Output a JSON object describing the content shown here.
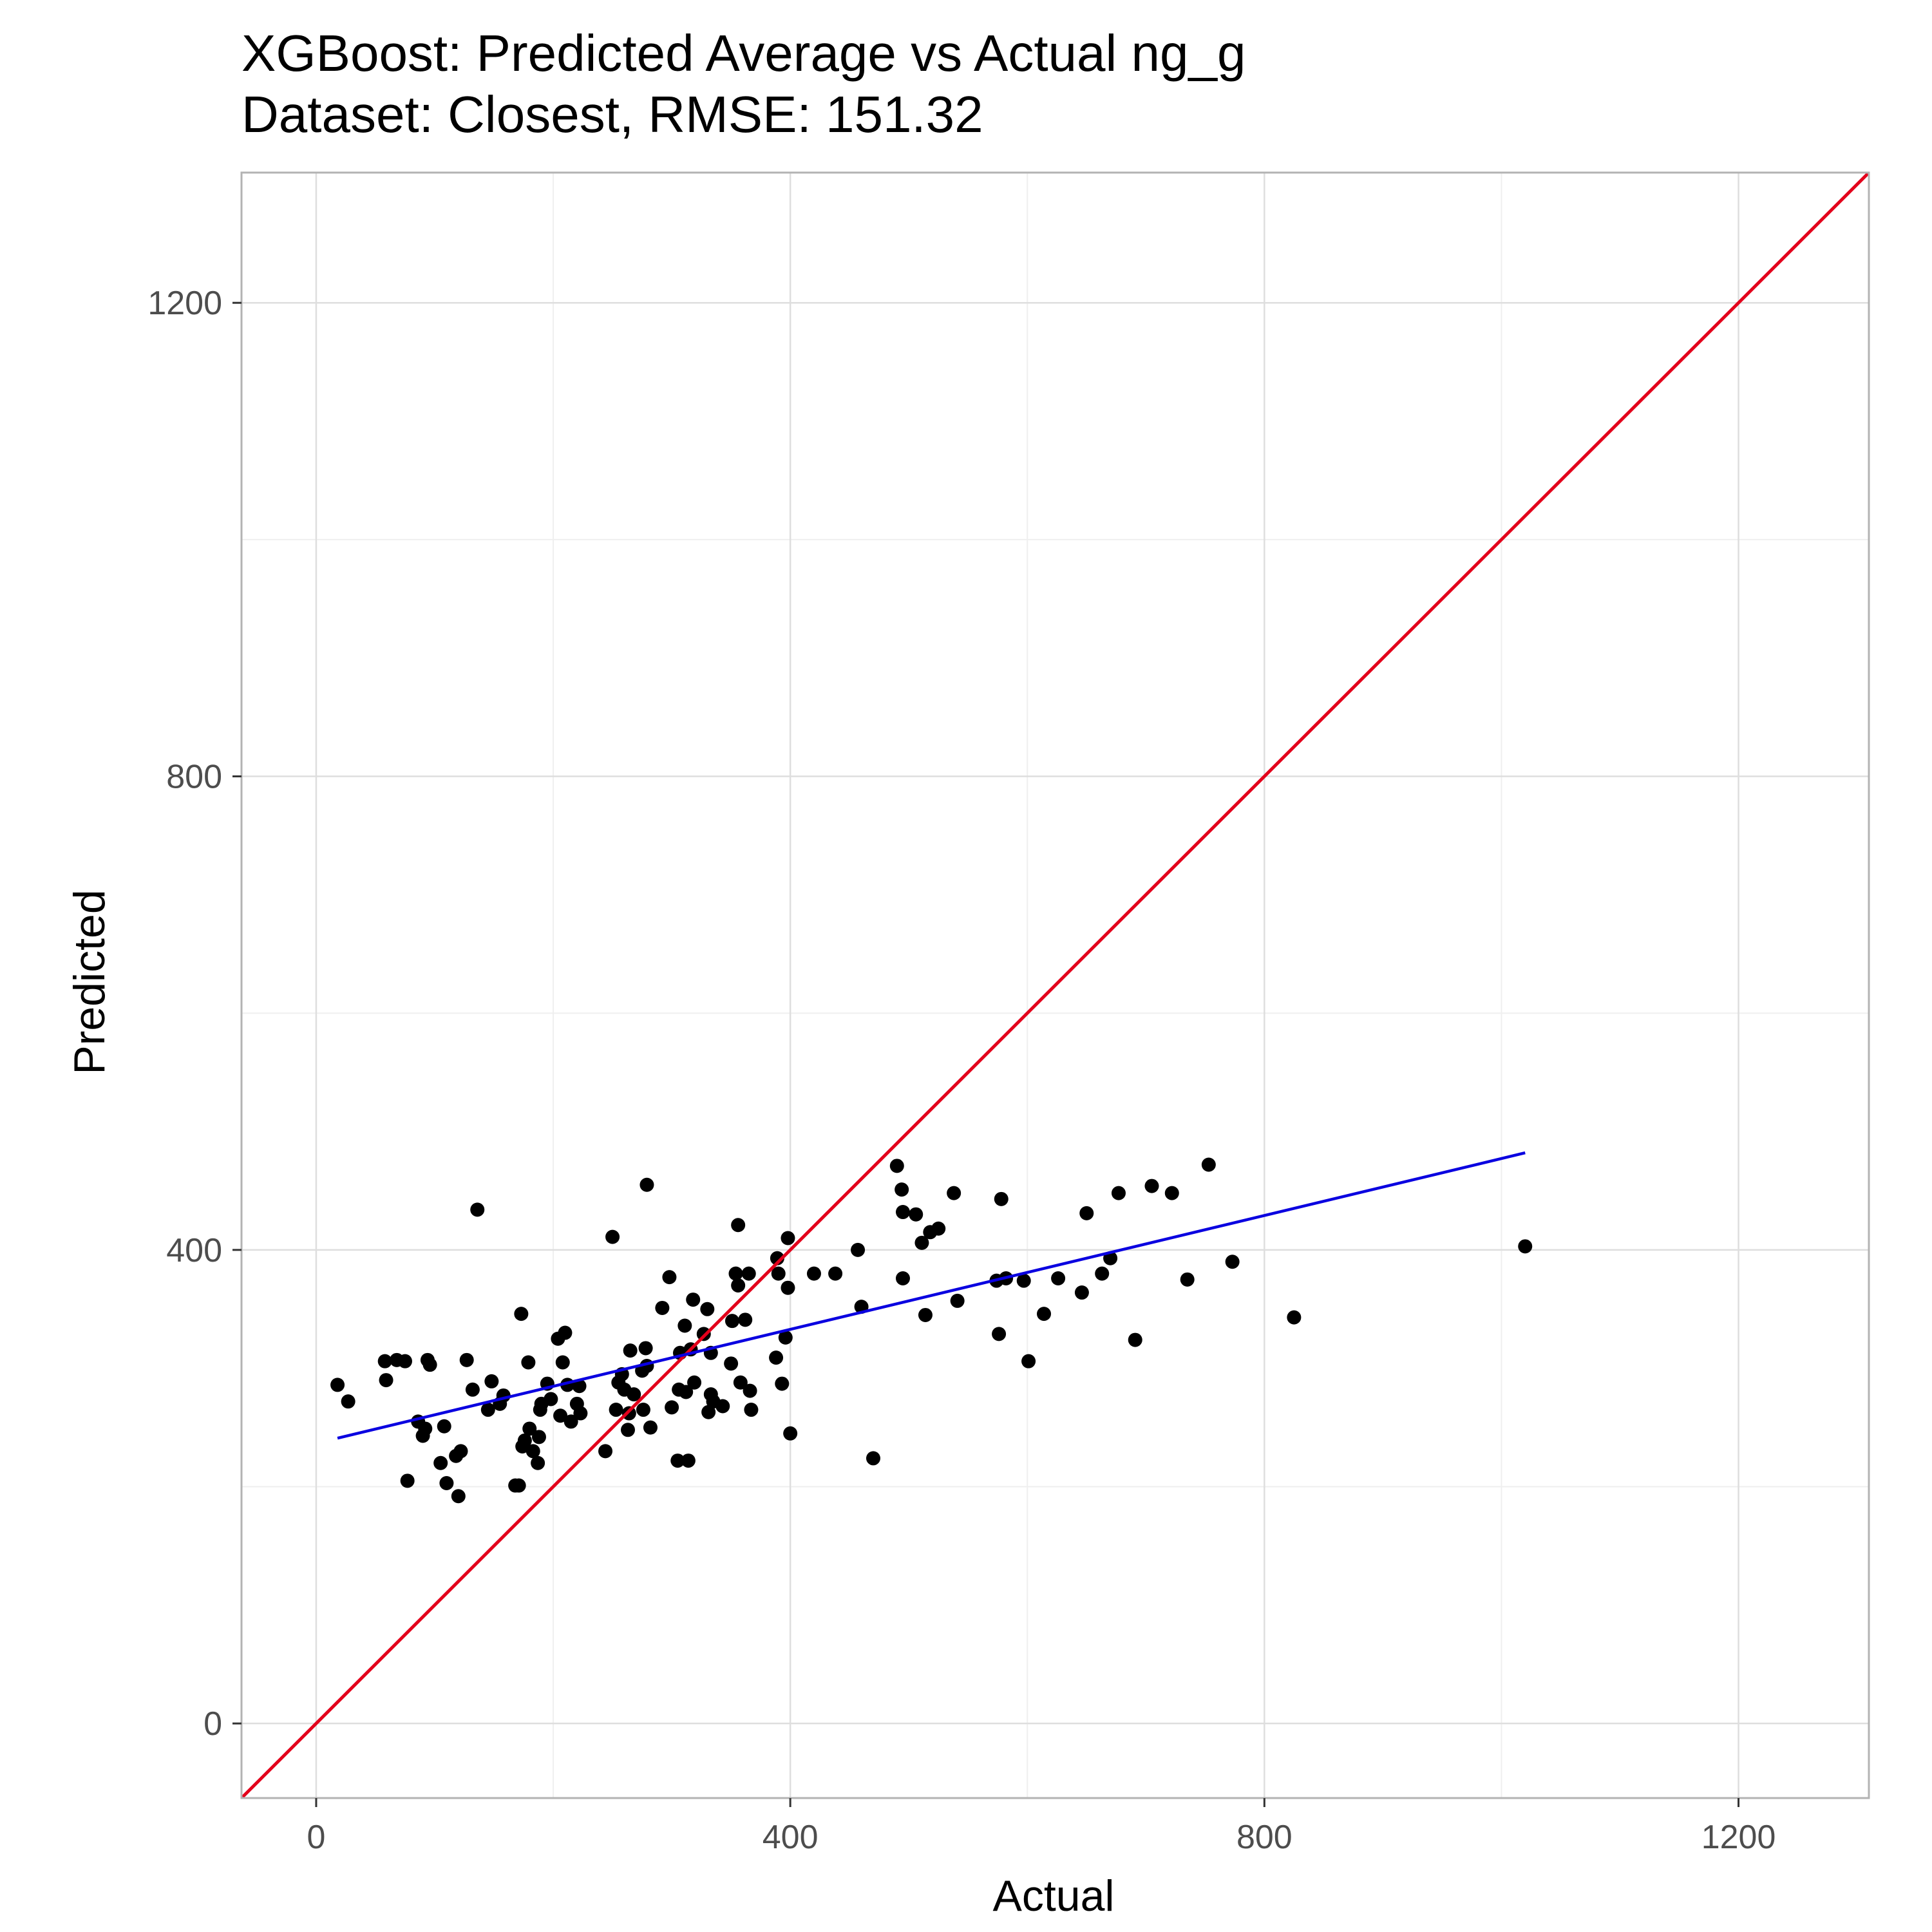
{
  "chart_data": {
    "type": "scatter",
    "title": "XGBoost: Predicted Average vs Actual ng_g",
    "subtitle": "Dataset: Closest, RMSE: 151.32",
    "xlabel": "Actual",
    "ylabel": "Predicted",
    "xlim": [
      -63,
      1310
    ],
    "ylim": [
      -63,
      1310
    ],
    "x_ticks": [
      0,
      400,
      800,
      1200
    ],
    "y_ticks": [
      0,
      400,
      800,
      1200
    ],
    "x_tick_labels": [
      "0",
      "400",
      "800",
      "1200"
    ],
    "y_tick_labels": [
      "0",
      "400",
      "800",
      "1200"
    ],
    "x_minor": [
      200,
      600,
      1000
    ],
    "y_minor": [
      200,
      600,
      1000
    ],
    "grid": true,
    "colors": {
      "points": "#000000",
      "identity_line": "#e3001b",
      "fit_line": "#0a00e0",
      "panel_border": "#b3b3b3",
      "grid_major": "#dedede",
      "grid_minor": "#efefef"
    },
    "series": [
      {
        "kind": "points",
        "points": [
          [
            18,
            286
          ],
          [
            27,
            272
          ],
          [
            58,
            306
          ],
          [
            59,
            290
          ],
          [
            68,
            307
          ],
          [
            75,
            306
          ],
          [
            77,
            205
          ],
          [
            86,
            255
          ],
          [
            90,
            243
          ],
          [
            92,
            249
          ],
          [
            94,
            307
          ],
          [
            96,
            303
          ],
          [
            105,
            220
          ],
          [
            108,
            251
          ],
          [
            110,
            203
          ],
          [
            118,
            226
          ],
          [
            120,
            192
          ],
          [
            122,
            230
          ],
          [
            127,
            307
          ],
          [
            132,
            282
          ],
          [
            136,
            434
          ],
          [
            145,
            265
          ],
          [
            148,
            289
          ],
          [
            155,
            270
          ],
          [
            158,
            277
          ],
          [
            168,
            201
          ],
          [
            171,
            201
          ],
          [
            173,
            346
          ],
          [
            174,
            234
          ],
          [
            176,
            239
          ],
          [
            179,
            305
          ],
          [
            180,
            249
          ],
          [
            183,
            230
          ],
          [
            187,
            220
          ],
          [
            188,
            242
          ],
          [
            189,
            265
          ],
          [
            190,
            270
          ],
          [
            195,
            287
          ],
          [
            198,
            274
          ],
          [
            204,
            325
          ],
          [
            206,
            260
          ],
          [
            208,
            305
          ],
          [
            210,
            330
          ],
          [
            212,
            286
          ],
          [
            215,
            255
          ],
          [
            220,
            270
          ],
          [
            222,
            285
          ],
          [
            223,
            262
          ],
          [
            244,
            230
          ],
          [
            250,
            411
          ],
          [
            253,
            265
          ],
          [
            255,
            288
          ],
          [
            258,
            295
          ],
          [
            260,
            282
          ],
          [
            263,
            248
          ],
          [
            264,
            262
          ],
          [
            265,
            315
          ],
          [
            268,
            278
          ],
          [
            275,
            298
          ],
          [
            276,
            265
          ],
          [
            278,
            317
          ],
          [
            279,
            455
          ],
          [
            279,
            302
          ],
          [
            282,
            250
          ],
          [
            292,
            351
          ],
          [
            298,
            377
          ],
          [
            300,
            267
          ],
          [
            305,
            222
          ],
          [
            306,
            282
          ],
          [
            307,
            313
          ],
          [
            311,
            336
          ],
          [
            312,
            280
          ],
          [
            314,
            222
          ],
          [
            316,
            316
          ],
          [
            318,
            358
          ],
          [
            319,
            288
          ],
          [
            327,
            329
          ],
          [
            330,
            350
          ],
          [
            331,
            263
          ],
          [
            333,
            278
          ],
          [
            333,
            313
          ],
          [
            335,
            272
          ],
          [
            343,
            268
          ],
          [
            350,
            304
          ],
          [
            351,
            340
          ],
          [
            354,
            380
          ],
          [
            356,
            421
          ],
          [
            356,
            370
          ],
          [
            358,
            288
          ],
          [
            362,
            341
          ],
          [
            365,
            380
          ],
          [
            366,
            281
          ],
          [
            367,
            265
          ],
          [
            388,
            309
          ],
          [
            389,
            393
          ],
          [
            390,
            380
          ],
          [
            393,
            287
          ],
          [
            396,
            326
          ],
          [
            398,
            410
          ],
          [
            398,
            368
          ],
          [
            400,
            245
          ],
          [
            420,
            380
          ],
          [
            438,
            380
          ],
          [
            457,
            400
          ],
          [
            460,
            352
          ],
          [
            470,
            224
          ],
          [
            490,
            471
          ],
          [
            494,
            451
          ],
          [
            495,
            432
          ],
          [
            495,
            376
          ],
          [
            506,
            430
          ],
          [
            511,
            406
          ],
          [
            514,
            345
          ],
          [
            518,
            415
          ],
          [
            525,
            418
          ],
          [
            538,
            448
          ],
          [
            541,
            357
          ],
          [
            574,
            374
          ],
          [
            576,
            329
          ],
          [
            578,
            443
          ],
          [
            582,
            376
          ],
          [
            597,
            374
          ],
          [
            601,
            306
          ],
          [
            614,
            346
          ],
          [
            626,
            376
          ],
          [
            646,
            364
          ],
          [
            650,
            431
          ],
          [
            663,
            380
          ],
          [
            670,
            393
          ],
          [
            677,
            448
          ],
          [
            691,
            324
          ],
          [
            705,
            454
          ],
          [
            722,
            448
          ],
          [
            735,
            375
          ],
          [
            753,
            472
          ],
          [
            773,
            390
          ],
          [
            825,
            343
          ],
          [
            1020,
            403
          ]
        ]
      },
      {
        "kind": "identity_line",
        "x": [
          -63,
          1310
        ],
        "y": [
          -63,
          1310
        ]
      },
      {
        "kind": "fit_line",
        "x": [
          18,
          1020
        ],
        "y": [
          241,
          482
        ]
      }
    ]
  }
}
